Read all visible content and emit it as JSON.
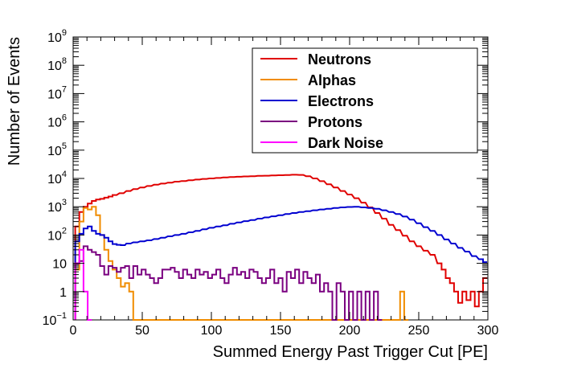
{
  "chart_data": {
    "type": "histogram",
    "xlabel": "Summed Energy Past Trigger Cut [PE]",
    "ylabel": "Number of Events",
    "xlim": [
      0,
      300
    ],
    "ylim": [
      0.1,
      1000000000
    ],
    "yscale": "log",
    "bin_width": 3,
    "x_ticks": [
      0,
      50,
      100,
      150,
      200,
      250,
      300
    ],
    "y_ticks": [
      {
        "value": 0.1,
        "base": "10",
        "exp": "−1"
      },
      {
        "value": 1,
        "base": "1",
        "exp": ""
      },
      {
        "value": 10,
        "base": "10",
        "exp": ""
      },
      {
        "value": 100,
        "base": "10",
        "exp": "2"
      },
      {
        "value": 1000,
        "base": "10",
        "exp": "3"
      },
      {
        "value": 10000,
        "base": "10",
        "exp": "4"
      },
      {
        "value": 100000,
        "base": "10",
        "exp": "5"
      },
      {
        "value": 1000000,
        "base": "10",
        "exp": "6"
      },
      {
        "value": 10000000,
        "base": "10",
        "exp": "7"
      },
      {
        "value": 100000000,
        "base": "10",
        "exp": "8"
      },
      {
        "value": 1000000000,
        "base": "10",
        "exp": "9"
      }
    ],
    "legend_position": "top-right",
    "series": [
      {
        "name": "Neutrons",
        "color": "#e00000",
        "points": [
          [
            3,
            200
          ],
          [
            6,
            650
          ],
          [
            9,
            1000
          ],
          [
            12,
            1300
          ],
          [
            15,
            1600
          ],
          [
            18,
            1800
          ],
          [
            21,
            1900
          ],
          [
            24,
            2100
          ],
          [
            27,
            2300
          ],
          [
            30,
            2600
          ],
          [
            35,
            3000
          ],
          [
            40,
            3600
          ],
          [
            45,
            4200
          ],
          [
            50,
            4800
          ],
          [
            55,
            5400
          ],
          [
            60,
            6000
          ],
          [
            65,
            6600
          ],
          [
            70,
            7100
          ],
          [
            75,
            7700
          ],
          [
            80,
            8100
          ],
          [
            85,
            8600
          ],
          [
            90,
            9100
          ],
          [
            95,
            9600
          ],
          [
            100,
            10000
          ],
          [
            105,
            10400
          ],
          [
            110,
            10800
          ],
          [
            115,
            11200
          ],
          [
            120,
            11500
          ],
          [
            125,
            11800
          ],
          [
            130,
            12000
          ],
          [
            135,
            12300
          ],
          [
            140,
            12500
          ],
          [
            145,
            12800
          ],
          [
            150,
            13000
          ],
          [
            155,
            13200
          ],
          [
            160,
            13500
          ],
          [
            165,
            13300
          ],
          [
            170,
            12000
          ],
          [
            175,
            10000
          ],
          [
            180,
            8000
          ],
          [
            185,
            6200
          ],
          [
            190,
            4800
          ],
          [
            195,
            3600
          ],
          [
            200,
            2700
          ],
          [
            205,
            2000
          ],
          [
            210,
            1400
          ],
          [
            215,
            950
          ],
          [
            220,
            600
          ],
          [
            225,
            380
          ],
          [
            230,
            230
          ],
          [
            235,
            150
          ],
          [
            240,
            95
          ],
          [
            245,
            60
          ],
          [
            250,
            40
          ],
          [
            255,
            28
          ],
          [
            260,
            20
          ],
          [
            265,
            10
          ],
          [
            268,
            6
          ],
          [
            271,
            3
          ],
          [
            274,
            2
          ],
          [
            277,
            1
          ],
          [
            280,
            0.4
          ],
          [
            283,
            1
          ],
          [
            286,
            0.5
          ],
          [
            289,
            1
          ],
          [
            292,
            0.3
          ],
          [
            295,
            1
          ],
          [
            298,
            3
          ]
        ]
      },
      {
        "name": "Alphas",
        "color": "#f08c00",
        "points": [
          [
            3,
            6
          ],
          [
            6,
            300
          ],
          [
            9,
            900
          ],
          [
            12,
            800
          ],
          [
            15,
            1000
          ],
          [
            18,
            500
          ],
          [
            21,
            100
          ],
          [
            24,
            30
          ],
          [
            27,
            12
          ],
          [
            30,
            6
          ],
          [
            33,
            3
          ],
          [
            36,
            1.5
          ],
          [
            39,
            2
          ],
          [
            42,
            1
          ],
          [
            45,
            0.1
          ],
          [
            235,
            0.1
          ],
          [
            238,
            1
          ],
          [
            241,
            0.1
          ]
        ]
      },
      {
        "name": "Electrons",
        "color": "#0000d0",
        "points": [
          [
            3,
            60
          ],
          [
            6,
            110
          ],
          [
            9,
            170
          ],
          [
            12,
            200
          ],
          [
            15,
            140
          ],
          [
            18,
            110
          ],
          [
            21,
            100
          ],
          [
            24,
            80
          ],
          [
            27,
            60
          ],
          [
            30,
            48
          ],
          [
            33,
            45
          ],
          [
            36,
            44
          ],
          [
            40,
            50
          ],
          [
            45,
            55
          ],
          [
            50,
            60
          ],
          [
            55,
            65
          ],
          [
            60,
            72
          ],
          [
            65,
            80
          ],
          [
            70,
            90
          ],
          [
            75,
            100
          ],
          [
            80,
            110
          ],
          [
            85,
            125
          ],
          [
            90,
            140
          ],
          [
            95,
            160
          ],
          [
            100,
            180
          ],
          [
            105,
            200
          ],
          [
            110,
            220
          ],
          [
            115,
            250
          ],
          [
            120,
            280
          ],
          [
            125,
            310
          ],
          [
            130,
            340
          ],
          [
            135,
            380
          ],
          [
            140,
            420
          ],
          [
            145,
            460
          ],
          [
            150,
            500
          ],
          [
            155,
            550
          ],
          [
            160,
            600
          ],
          [
            165,
            650
          ],
          [
            170,
            700
          ],
          [
            175,
            750
          ],
          [
            180,
            800
          ],
          [
            185,
            850
          ],
          [
            190,
            900
          ],
          [
            195,
            950
          ],
          [
            200,
            980
          ],
          [
            205,
            1000
          ],
          [
            210,
            950
          ],
          [
            215,
            900
          ],
          [
            220,
            850
          ],
          [
            225,
            750
          ],
          [
            230,
            650
          ],
          [
            235,
            550
          ],
          [
            240,
            450
          ],
          [
            245,
            350
          ],
          [
            250,
            260
          ],
          [
            255,
            190
          ],
          [
            260,
            140
          ],
          [
            265,
            100
          ],
          [
            270,
            70
          ],
          [
            275,
            50
          ],
          [
            280,
            35
          ],
          [
            285,
            26
          ],
          [
            290,
            18
          ],
          [
            295,
            14
          ],
          [
            298,
            11
          ]
        ]
      },
      {
        "name": "Protons",
        "color": "#7a0080",
        "points": [
          [
            3,
            10
          ],
          [
            6,
            12
          ],
          [
            9,
            40
          ],
          [
            12,
            30
          ],
          [
            15,
            25
          ],
          [
            18,
            20
          ],
          [
            21,
            8
          ],
          [
            24,
            4
          ],
          [
            27,
            8
          ],
          [
            30,
            7
          ],
          [
            33,
            5
          ],
          [
            36,
            7
          ],
          [
            39,
            8
          ],
          [
            42,
            3
          ],
          [
            45,
            8
          ],
          [
            48,
            4
          ],
          [
            51,
            6
          ],
          [
            54,
            4
          ],
          [
            57,
            3
          ],
          [
            60,
            2
          ],
          [
            63,
            3
          ],
          [
            66,
            6
          ],
          [
            69,
            6
          ],
          [
            72,
            7
          ],
          [
            75,
            5
          ],
          [
            78,
            3
          ],
          [
            81,
            6
          ],
          [
            84,
            4
          ],
          [
            87,
            3
          ],
          [
            90,
            6
          ],
          [
            93,
            4
          ],
          [
            96,
            5
          ],
          [
            99,
            3
          ],
          [
            102,
            4
          ],
          [
            105,
            6
          ],
          [
            108,
            3
          ],
          [
            111,
            2
          ],
          [
            114,
            4
          ],
          [
            117,
            7
          ],
          [
            120,
            4
          ],
          [
            123,
            5
          ],
          [
            126,
            3
          ],
          [
            129,
            6
          ],
          [
            132,
            5
          ],
          [
            135,
            3
          ],
          [
            138,
            2
          ],
          [
            141,
            3
          ],
          [
            144,
            6
          ],
          [
            147,
            2
          ],
          [
            150,
            3
          ],
          [
            153,
            1
          ],
          [
            156,
            5
          ],
          [
            159,
            3
          ],
          [
            162,
            6
          ],
          [
            165,
            2
          ],
          [
            168,
            5
          ],
          [
            171,
            3
          ],
          [
            174,
            2
          ],
          [
            177,
            4
          ],
          [
            180,
            1
          ],
          [
            183,
            2
          ],
          [
            186,
            1
          ],
          [
            189,
            0.1
          ],
          [
            192,
            2
          ],
          [
            195,
            1
          ],
          [
            198,
            0.1
          ],
          [
            201,
            1
          ],
          [
            204,
            0.1
          ],
          [
            207,
            1
          ],
          [
            210,
            0.1
          ],
          [
            213,
            1
          ],
          [
            216,
            0.1
          ],
          [
            219,
            1
          ],
          [
            222,
            0.1
          ]
        ]
      },
      {
        "name": "Dark Noise",
        "color": "#ff00ff",
        "points": [
          [
            3,
            10
          ],
          [
            6,
            30
          ],
          [
            9,
            1
          ],
          [
            12,
            0.1
          ]
        ]
      }
    ]
  }
}
